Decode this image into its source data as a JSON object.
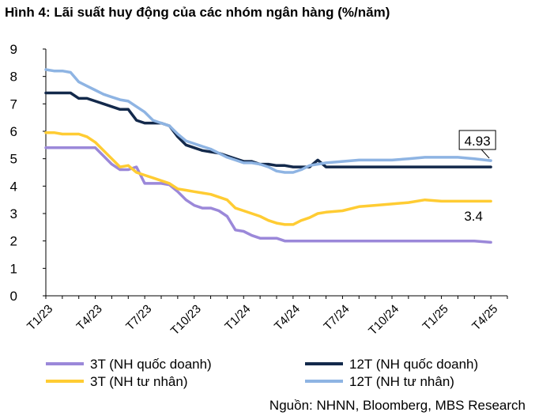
{
  "title": "Hình 4: Lãi suất huy động của các nhóm ngân hàng (%/năm)",
  "source": "Nguồn: NHNN, Bloomberg, MBS Research",
  "chart_data": {
    "type": "line",
    "title": "Hình 4: Lãi suất huy động của các nhóm ngân hàng (%/năm)",
    "xlabel": "",
    "ylabel": "",
    "ylim": [
      0,
      9
    ],
    "yticks": [
      0,
      1,
      2,
      3,
      4,
      5,
      6,
      7,
      8,
      9
    ],
    "x_range": [
      0,
      28
    ],
    "xtick_labels": [
      "T1/23",
      "T4/23",
      "T7/23",
      "T10/23",
      "T1/24",
      "T4/24",
      "T7/24",
      "T10/24",
      "T1/25",
      "T4/25"
    ],
    "xtick_positions": [
      0,
      3,
      6,
      9,
      12,
      15,
      18,
      21,
      24,
      27
    ],
    "grid": false,
    "legend_position": "bottom",
    "series": [
      {
        "name": "3T (NH quốc doanh)",
        "color": "#9B88D9",
        "x": [
          0,
          0.5,
          1,
          1.5,
          2,
          2.5,
          3,
          3.5,
          4,
          4.5,
          5,
          5.5,
          6,
          6.5,
          7,
          7.5,
          8,
          8.5,
          9,
          9.5,
          10,
          10.5,
          11,
          11.5,
          12,
          12.5,
          13,
          13.5,
          14,
          14.5,
          15,
          16,
          17,
          18,
          19,
          20,
          21,
          22,
          23,
          24,
          25,
          26,
          27
        ],
        "y": [
          5.4,
          5.4,
          5.4,
          5.4,
          5.4,
          5.4,
          5.4,
          5.1,
          4.8,
          4.6,
          4.6,
          4.7,
          4.1,
          4.1,
          4.1,
          4.05,
          3.8,
          3.5,
          3.3,
          3.2,
          3.2,
          3.1,
          2.9,
          2.4,
          2.35,
          2.2,
          2.1,
          2.1,
          2.1,
          2.0,
          2.0,
          2.0,
          2.0,
          2.0,
          2.0,
          2.0,
          2.0,
          2.0,
          2.0,
          2.0,
          2.0,
          2.0,
          1.95
        ]
      },
      {
        "name": "12T (NH quốc doanh)",
        "color": "#13294B",
        "x": [
          0,
          0.5,
          1,
          1.5,
          2,
          2.5,
          3,
          3.5,
          4,
          4.5,
          5,
          5.5,
          6,
          6.5,
          7,
          7.5,
          8,
          8.5,
          9,
          9.5,
          10,
          10.5,
          11,
          11.5,
          12,
          12.5,
          13,
          13.5,
          14,
          14.5,
          15,
          15.5,
          16,
          16.5,
          17,
          18,
          19,
          20,
          21,
          22,
          23,
          24,
          25,
          26,
          27
        ],
        "y": [
          7.4,
          7.4,
          7.4,
          7.4,
          7.2,
          7.2,
          7.1,
          7.0,
          6.9,
          6.8,
          6.8,
          6.4,
          6.3,
          6.3,
          6.3,
          6.2,
          5.8,
          5.5,
          5.4,
          5.3,
          5.25,
          5.2,
          5.1,
          5.0,
          4.9,
          4.9,
          4.8,
          4.8,
          4.75,
          4.75,
          4.7,
          4.7,
          4.7,
          4.95,
          4.7,
          4.7,
          4.7,
          4.7,
          4.7,
          4.7,
          4.7,
          4.7,
          4.7,
          4.7,
          4.7
        ]
      },
      {
        "name": "3T (NH tư nhân)",
        "color": "#FFCC33",
        "x": [
          0,
          0.5,
          1,
          1.5,
          2,
          2.5,
          3,
          3.5,
          4,
          4.5,
          5,
          5.5,
          6,
          6.5,
          7,
          7.5,
          8,
          8.5,
          9,
          9.5,
          10,
          10.5,
          11,
          11.5,
          12,
          12.5,
          13,
          13.5,
          14,
          14.5,
          15,
          15.5,
          16,
          16.5,
          17,
          18,
          19,
          20,
          21,
          22,
          23,
          24,
          25,
          26,
          27
        ],
        "y": [
          5.95,
          5.95,
          5.9,
          5.9,
          5.9,
          5.8,
          5.6,
          5.3,
          5.0,
          4.7,
          4.75,
          4.5,
          4.4,
          4.3,
          4.2,
          4.1,
          3.9,
          3.85,
          3.8,
          3.75,
          3.7,
          3.6,
          3.5,
          3.2,
          3.1,
          3.0,
          2.9,
          2.75,
          2.65,
          2.6,
          2.6,
          2.75,
          2.85,
          3.0,
          3.05,
          3.1,
          3.25,
          3.3,
          3.35,
          3.4,
          3.5,
          3.45,
          3.45,
          3.45,
          3.45
        ]
      },
      {
        "name": "12T (NH tư nhân)",
        "color": "#8EB4E3",
        "x": [
          0,
          0.5,
          1,
          1.5,
          2,
          2.5,
          3,
          3.5,
          4,
          4.5,
          5,
          5.5,
          6,
          6.5,
          7,
          7.5,
          8,
          8.5,
          9,
          9.5,
          10,
          10.5,
          11,
          11.5,
          12,
          12.5,
          13,
          13.5,
          14,
          14.5,
          15,
          15.5,
          16,
          16.5,
          17,
          18,
          19,
          20,
          21,
          22,
          23,
          24,
          25,
          26,
          27
        ],
        "y": [
          8.25,
          8.2,
          8.2,
          8.15,
          7.8,
          7.65,
          7.5,
          7.35,
          7.25,
          7.15,
          7.1,
          6.9,
          6.7,
          6.4,
          6.3,
          6.2,
          5.9,
          5.65,
          5.55,
          5.45,
          5.35,
          5.2,
          5.05,
          4.95,
          4.85,
          4.85,
          4.8,
          4.7,
          4.55,
          4.5,
          4.5,
          4.6,
          4.75,
          4.8,
          4.85,
          4.9,
          4.95,
          4.95,
          4.95,
          5.0,
          5.05,
          5.05,
          5.05,
          5.0,
          4.93
        ]
      }
    ],
    "annotations": [
      {
        "series": "12T (NH tư nhân)",
        "x": 27,
        "y": 4.93,
        "text": "4.93"
      },
      {
        "series": "3T (NH tư nhân)",
        "x": 27,
        "y": 3.45,
        "text": "3.4"
      }
    ]
  }
}
